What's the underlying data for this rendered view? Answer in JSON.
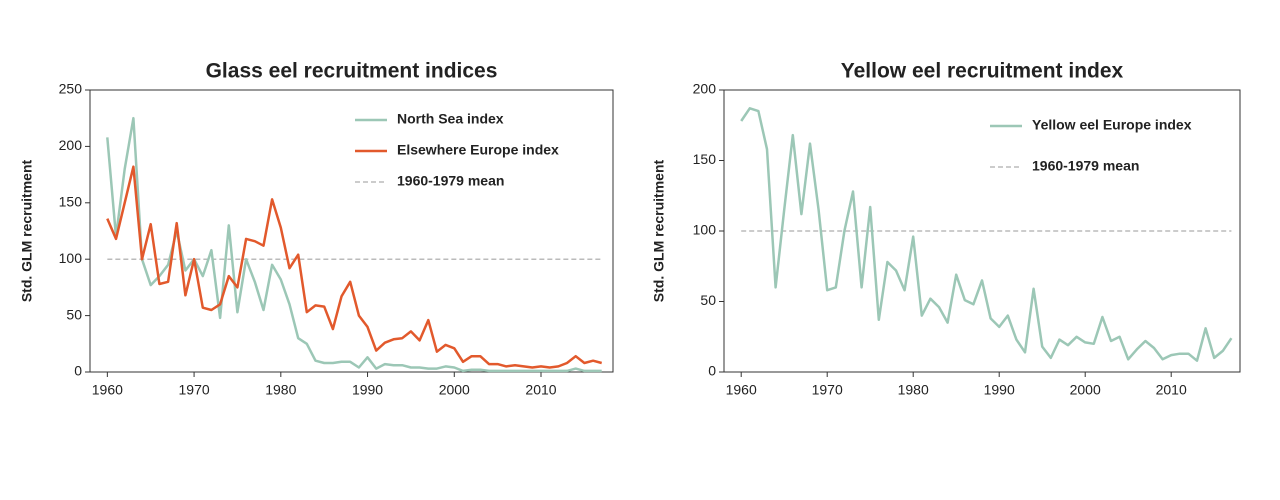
{
  "chart_data": [
    {
      "type": "line",
      "title": "Glass eel recruitment indices",
      "ylabel": "Std. GLM recruitment",
      "x": [
        1960,
        1961,
        1962,
        1963,
        1964,
        1965,
        1966,
        1967,
        1968,
        1969,
        1970,
        1971,
        1972,
        1973,
        1974,
        1975,
        1976,
        1977,
        1978,
        1979,
        1980,
        1981,
        1982,
        1983,
        1984,
        1985,
        1986,
        1987,
        1988,
        1989,
        1990,
        1991,
        1992,
        1993,
        1994,
        1995,
        1996,
        1997,
        1998,
        1999,
        2000,
        2001,
        2002,
        2003,
        2004,
        2005,
        2006,
        2007,
        2008,
        2009,
        2010,
        2011,
        2012,
        2013,
        2014,
        2015,
        2016,
        2017
      ],
      "series": [
        {
          "name": "North Sea index",
          "color": "#9cc7b6",
          "values": [
            208,
            120,
            180,
            225,
            100,
            77,
            85,
            95,
            125,
            90,
            100,
            85,
            108,
            48,
            130,
            53,
            100,
            80,
            55,
            95,
            82,
            60,
            30,
            25,
            10,
            8,
            8,
            9,
            9,
            4,
            13,
            3,
            7,
            6,
            6,
            4,
            4,
            3,
            3,
            5,
            4,
            1,
            2,
            2,
            1,
            1,
            1,
            1,
            1,
            1,
            1,
            1,
            1,
            1,
            3,
            1,
            1,
            1
          ]
        },
        {
          "name": "Elsewhere Europe index",
          "color": "#e2592c",
          "values": [
            136,
            118,
            150,
            182,
            100,
            131,
            78,
            80,
            132,
            68,
            100,
            57,
            55,
            60,
            85,
            75,
            118,
            116,
            112,
            153,
            128,
            92,
            104,
            53,
            59,
            58,
            38,
            67,
            80,
            50,
            40,
            19,
            26,
            29,
            30,
            36,
            28,
            46,
            18,
            24,
            21,
            9,
            14,
            14,
            7,
            7,
            5,
            6,
            5,
            4,
            5,
            4,
            5,
            8,
            14,
            8,
            10,
            8
          ]
        }
      ],
      "mean": {
        "name": "1960-1979 mean",
        "value": 100,
        "color": "#bbbbbb"
      },
      "xlim": [
        1958,
        2018.3
      ],
      "xticks": [
        1960,
        1970,
        1980,
        1990,
        2000,
        2010
      ],
      "ylim": [
        0,
        250
      ],
      "yticks": [
        0,
        50,
        100,
        150,
        200,
        250
      ]
    },
    {
      "type": "line",
      "title": "Yellow eel recruitment index",
      "ylabel": "Std. GLM recruitment",
      "x": [
        1960,
        1961,
        1962,
        1963,
        1964,
        1965,
        1966,
        1967,
        1968,
        1969,
        1970,
        1971,
        1972,
        1973,
        1974,
        1975,
        1976,
        1977,
        1978,
        1979,
        1980,
        1981,
        1982,
        1983,
        1984,
        1985,
        1986,
        1987,
        1988,
        1989,
        1990,
        1991,
        1992,
        1993,
        1994,
        1995,
        1996,
        1997,
        1998,
        1999,
        2000,
        2001,
        2002,
        2003,
        2004,
        2005,
        2006,
        2007,
        2008,
        2009,
        2010,
        2011,
        2012,
        2013,
        2014,
        2015,
        2016,
        2017
      ],
      "series": [
        {
          "name": "Yellow eel Europe index",
          "color": "#9cc7b6",
          "values": [
            178,
            187,
            185,
            158,
            60,
            115,
            168,
            112,
            162,
            115,
            58,
            60,
            100,
            128,
            60,
            117,
            37,
            78,
            72,
            58,
            96,
            40,
            52,
            46,
            35,
            69,
            51,
            48,
            65,
            38,
            32,
            40,
            23,
            14,
            59,
            18,
            10,
            23,
            19,
            25,
            21,
            20,
            39,
            22,
            25,
            9,
            16,
            22,
            17,
            9,
            12,
            13,
            13,
            8,
            31,
            10,
            15,
            24
          ]
        }
      ],
      "mean": {
        "name": "1960-1979 mean",
        "value": 100,
        "color": "#bbbbbb"
      },
      "xlim": [
        1958,
        2018
      ],
      "xticks": [
        1960,
        1970,
        1980,
        1990,
        2000,
        2010
      ],
      "ylim": [
        0,
        200
      ],
      "yticks": [
        0,
        50,
        100,
        150,
        200
      ]
    }
  ]
}
